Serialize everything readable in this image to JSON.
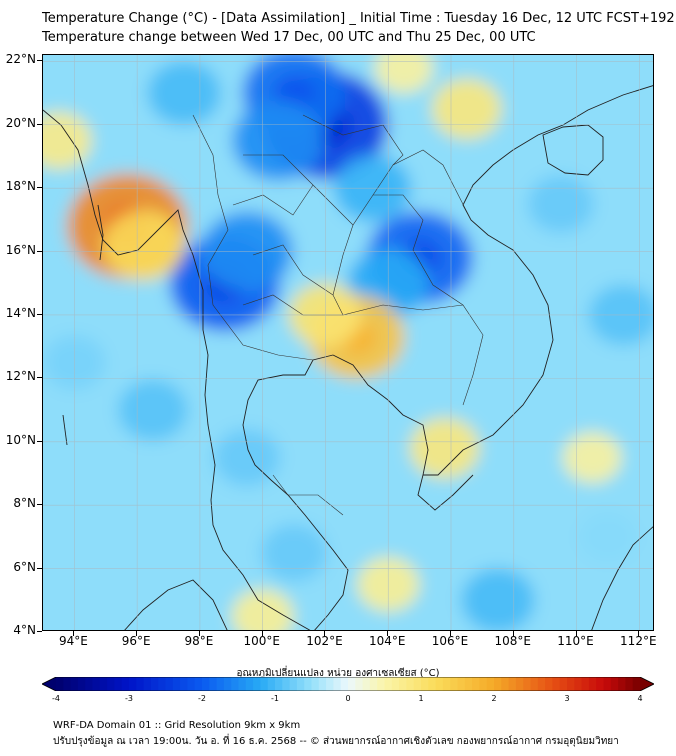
{
  "title_line1": "Temperature Change (°C) - [Data Assimilation] _ Initial Time : Tuesday 16 Dec, 12 UTC FCST+192",
  "title_line2": "Temperature change between Wed 17 Dec, 00 UTC and Thu 25 Dec, 00 UTC",
  "colorbar_label": "อุณหภูมิเปลี่ยนแปลง หน่วย องศาเซลเซียส (°C)",
  "footer_line1": "WRF-DA Domain 01 :: Grid Resolution 9km x 9km",
  "footer_line2": "ปรับปรุงข้อมูล ณ เวลา 19:00น. วัน อ. ที่ 16 ธ.ค. 2568 -- © ส่วนพยากรณ์อากาศเชิงตัวเลข กองพยากรณ์อากาศ กรมอุตุนิยมวิทยา",
  "chart_data": {
    "type": "heatmap",
    "xlim": [
      93,
      112.5
    ],
    "ylim": [
      4,
      22.2
    ],
    "x_ticks": [
      "94°E",
      "96°E",
      "98°E",
      "100°E",
      "102°E",
      "104°E",
      "106°E",
      "108°E",
      "110°E",
      "112°E"
    ],
    "y_ticks": [
      "22°N",
      "20°N",
      "18°N",
      "16°N",
      "14°N",
      "12°N",
      "10°N",
      "8°N",
      "6°N",
      "4°N"
    ],
    "x_tick_values": [
      94,
      96,
      98,
      100,
      102,
      104,
      106,
      108,
      110,
      112
    ],
    "y_tick_values": [
      22,
      20,
      18,
      16,
      14,
      12,
      10,
      8,
      6,
      4
    ],
    "colorbar_ticks": [
      "-4",
      "-3",
      "-2",
      "-1",
      "0",
      "1",
      "2",
      "3",
      "4"
    ],
    "colorbar_values": [
      -4,
      -3,
      -2,
      -1,
      0,
      1,
      2,
      3,
      4
    ],
    "value_range": [
      -4,
      4
    ],
    "grid": true,
    "features": [
      {
        "lon": 102.0,
        "lat": 20.0,
        "value": -2.4
      },
      {
        "lon": 101.0,
        "lat": 21.0,
        "value": -1.8
      },
      {
        "lon": 100.5,
        "lat": 19.5,
        "value": -1.5
      },
      {
        "lon": 98.8,
        "lat": 15.0,
        "value": -2.0
      },
      {
        "lon": 99.5,
        "lat": 16.0,
        "value": -1.5
      },
      {
        "lon": 105.0,
        "lat": 15.8,
        "value": -1.9
      },
      {
        "lon": 104.0,
        "lat": 15.0,
        "value": -1.2
      },
      {
        "lon": 103.5,
        "lat": 18.0,
        "value": -1.1
      },
      {
        "lon": 95.7,
        "lat": 16.8,
        "value": 2.3
      },
      {
        "lon": 96.2,
        "lat": 16.2,
        "value": 1.2
      },
      {
        "lon": 93.5,
        "lat": 19.5,
        "value": 0.8
      },
      {
        "lon": 106.5,
        "lat": 20.5,
        "value": 0.9
      },
      {
        "lon": 104.5,
        "lat": 21.8,
        "value": 0.6
      },
      {
        "lon": 103.0,
        "lat": 13.3,
        "value": 1.6
      },
      {
        "lon": 102.0,
        "lat": 14.0,
        "value": 1.0
      },
      {
        "lon": 105.8,
        "lat": 9.8,
        "value": 0.9
      },
      {
        "lon": 110.5,
        "lat": 9.5,
        "value": 0.6
      },
      {
        "lon": 104.0,
        "lat": 5.5,
        "value": 0.7
      },
      {
        "lon": 100.0,
        "lat": 4.5,
        "value": 0.7
      },
      {
        "lon": 97.5,
        "lat": 21.0,
        "value": -1.0
      },
      {
        "lon": 109.5,
        "lat": 17.5,
        "value": -0.8
      },
      {
        "lon": 96.5,
        "lat": 11.0,
        "value": -0.9
      },
      {
        "lon": 94.0,
        "lat": 12.5,
        "value": -0.7
      },
      {
        "lon": 101.0,
        "lat": 6.5,
        "value": -0.8
      },
      {
        "lon": 107.5,
        "lat": 5.0,
        "value": -1.0
      },
      {
        "lon": 111.5,
        "lat": 14.0,
        "value": -0.9
      },
      {
        "lon": 99.5,
        "lat": 9.5,
        "value": -0.8
      },
      {
        "lon": 111.0,
        "lat": 7.0,
        "value": -0.6
      }
    ]
  }
}
